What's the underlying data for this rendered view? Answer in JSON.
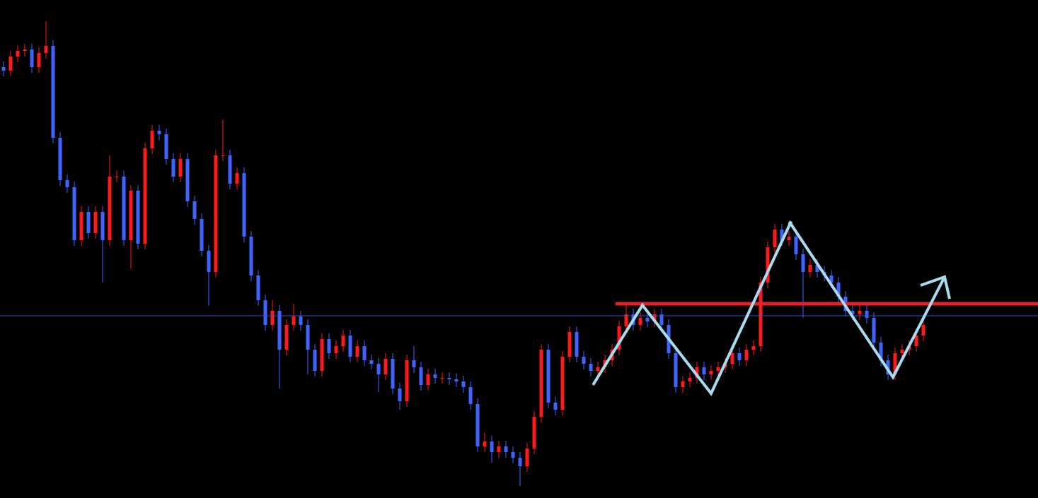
{
  "chart_data": {
    "type": "candlestick",
    "ylim": [
      0,
      705
    ],
    "up_color": "#ff1a1a",
    "down_color": "#3f63ff",
    "price_line": 258,
    "price_line_color": "#3a4fd0",
    "resistance": 275,
    "resistance_color": "#e8202a",
    "open": [
      610,
      605,
      625,
      633,
      635,
      610,
      630,
      640,
      510,
      450,
      440,
      365,
      405,
      375,
      405,
      365,
      455,
      455,
      365,
      435,
      360,
      495,
      520,
      515,
      480,
      455,
      480,
      420,
      395,
      350,
      320,
      485,
      485,
      445,
      460,
      370,
      315,
      280,
      245,
      265,
      210,
      245,
      257,
      245,
      210,
      180,
      225,
      205,
      215,
      230,
      200,
      215,
      195,
      190,
      175,
      197,
      155,
      137,
      195,
      185,
      160,
      175,
      170,
      170,
      168,
      165,
      157,
      133,
      73,
      80,
      65,
      73,
      65,
      57,
      45,
      70,
      115,
      210,
      135,
      125,
      200,
      235,
      200,
      190,
      180,
      185,
      195,
      210,
      243,
      260,
      245,
      255,
      250,
      260,
      245,
      205,
      157,
      165,
      170,
      185,
      175,
      180,
      185,
      190,
      205,
      195,
      210,
      215,
      305,
      355,
      380,
      365,
      370,
      345,
      320,
      330,
      320,
      315,
      305,
      285,
      265,
      260,
      265,
      255,
      220,
      195,
      175,
      205,
      210,
      215,
      230
    ],
    "high": [
      618,
      633,
      641,
      643,
      643,
      638,
      675,
      648,
      518,
      458,
      448,
      413,
      413,
      413,
      413,
      485,
      463,
      463,
      443,
      443,
      503,
      528,
      528,
      523,
      488,
      488,
      488,
      428,
      403,
      358,
      493,
      535,
      493,
      468,
      468,
      378,
      323,
      288,
      280,
      273,
      253,
      275,
      265,
      253,
      218,
      233,
      233,
      223,
      238,
      238,
      223,
      223,
      203,
      198,
      205,
      205,
      163,
      203,
      215,
      193,
      183,
      183,
      178,
      178,
      176,
      173,
      165,
      141,
      92,
      88,
      81,
      81,
      73,
      65,
      78,
      123,
      218,
      218,
      143,
      208,
      243,
      243,
      208,
      198,
      193,
      203,
      218,
      251,
      275,
      268,
      263,
      263,
      268,
      268,
      253,
      213,
      173,
      178,
      193,
      193,
      188,
      193,
      198,
      213,
      213,
      218,
      223,
      313,
      363,
      388,
      388,
      378,
      378,
      353,
      338,
      338,
      328,
      323,
      313,
      293,
      273,
      273,
      273,
      263,
      228,
      203,
      213,
      218,
      223,
      238,
      253
    ],
    "low": [
      597,
      597,
      617,
      625,
      602,
      602,
      622,
      502,
      442,
      432,
      357,
      357,
      367,
      367,
      305,
      357,
      447,
      357,
      325,
      352,
      352,
      487,
      507,
      472,
      447,
      447,
      412,
      387,
      342,
      272,
      312,
      477,
      437,
      437,
      362,
      307,
      272,
      237,
      237,
      155,
      202,
      237,
      237,
      175,
      172,
      172,
      197,
      197,
      207,
      192,
      192,
      187,
      182,
      150,
      167,
      147,
      125,
      129,
      177,
      152,
      152,
      162,
      162,
      160,
      157,
      149,
      125,
      65,
      65,
      50,
      57,
      57,
      49,
      17,
      37,
      62,
      107,
      127,
      117,
      117,
      192,
      192,
      182,
      172,
      172,
      177,
      187,
      202,
      235,
      237,
      237,
      242,
      242,
      237,
      197,
      149,
      149,
      157,
      162,
      167,
      167,
      172,
      177,
      182,
      187,
      187,
      202,
      207,
      297,
      347,
      357,
      357,
      337,
      255,
      312,
      312,
      307,
      297,
      277,
      257,
      252,
      252,
      247,
      212,
      187,
      167,
      167,
      197,
      202,
      207,
      222
    ],
    "close": [
      605,
      625,
      633,
      635,
      610,
      630,
      640,
      510,
      450,
      440,
      365,
      405,
      375,
      405,
      365,
      455,
      455,
      365,
      435,
      360,
      495,
      520,
      515,
      480,
      455,
      480,
      420,
      395,
      350,
      320,
      485,
      485,
      445,
      460,
      370,
      315,
      280,
      245,
      265,
      210,
      245,
      257,
      245,
      210,
      180,
      225,
      205,
      215,
      230,
      200,
      215,
      195,
      190,
      175,
      197,
      155,
      137,
      195,
      185,
      160,
      175,
      170,
      170,
      168,
      165,
      157,
      133,
      73,
      80,
      65,
      73,
      65,
      57,
      45,
      70,
      115,
      210,
      135,
      125,
      200,
      235,
      200,
      190,
      180,
      185,
      195,
      210,
      243,
      260,
      245,
      255,
      250,
      260,
      245,
      205,
      157,
      165,
      170,
      185,
      175,
      180,
      185,
      190,
      205,
      195,
      210,
      215,
      305,
      355,
      380,
      365,
      370,
      345,
      320,
      330,
      320,
      315,
      305,
      285,
      265,
      260,
      265,
      255,
      220,
      195,
      175,
      205,
      210,
      215,
      230,
      245
    ]
  }
}
